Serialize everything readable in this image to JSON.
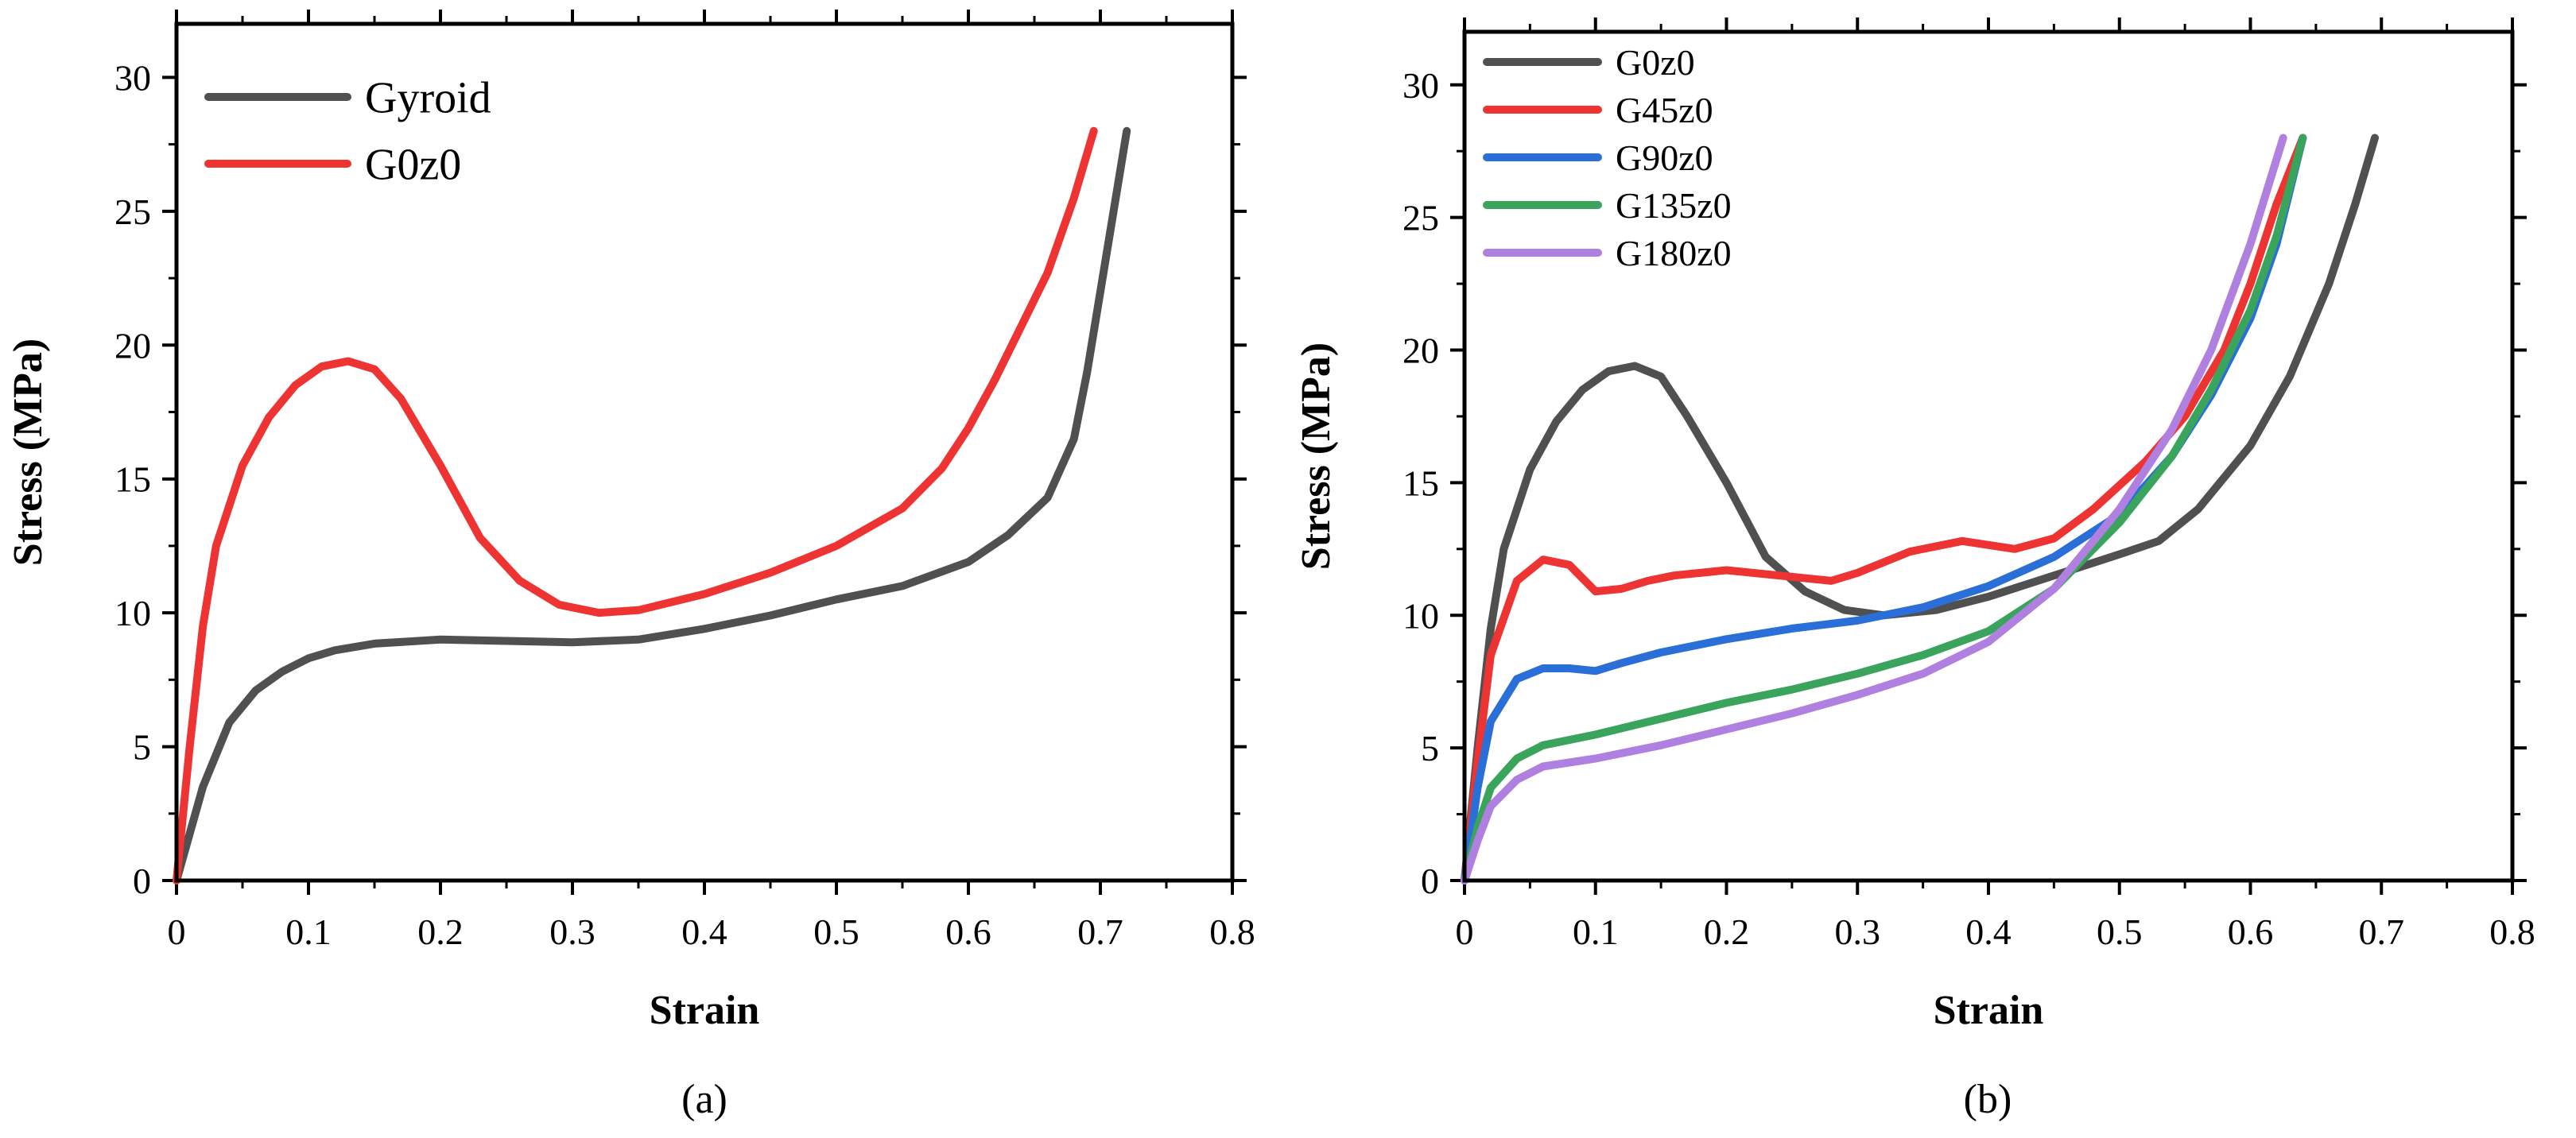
{
  "chart_data": [
    {
      "type": "line",
      "panel_label": "(a)",
      "xlabel": "Strain",
      "ylabel": "Stress (MPa)",
      "xlim": [
        0,
        0.8
      ],
      "ylim": [
        0,
        32
      ],
      "xticks": [
        "0",
        "0.1",
        "0.2",
        "0.3",
        "0.4",
        "0.5",
        "0.6",
        "0.7",
        "0.8"
      ],
      "yticks": [
        "0",
        "5",
        "10",
        "15",
        "20",
        "25",
        "30"
      ],
      "legend_position": "top-left",
      "series": [
        {
          "name": "Gyroid",
          "color": "#505050",
          "points": [
            [
              0,
              0
            ],
            [
              0.02,
              3.5
            ],
            [
              0.04,
              5.9
            ],
            [
              0.06,
              7.1
            ],
            [
              0.08,
              7.8
            ],
            [
              0.1,
              8.3
            ],
            [
              0.12,
              8.6
            ],
            [
              0.15,
              8.85
            ],
            [
              0.2,
              9.0
            ],
            [
              0.25,
              8.95
            ],
            [
              0.3,
              8.9
            ],
            [
              0.35,
              9.0
            ],
            [
              0.4,
              9.4
            ],
            [
              0.45,
              9.9
            ],
            [
              0.5,
              10.5
            ],
            [
              0.55,
              11.0
            ],
            [
              0.6,
              11.9
            ],
            [
              0.63,
              12.9
            ],
            [
              0.66,
              14.3
            ],
            [
              0.68,
              16.5
            ],
            [
              0.69,
              19.0
            ],
            [
              0.7,
              22.0
            ],
            [
              0.71,
              25.0
            ],
            [
              0.72,
              28.0
            ]
          ]
        },
        {
          "name": "G0z0",
          "color": "#ee3333",
          "points": [
            [
              0,
              0
            ],
            [
              0.01,
              5.0
            ],
            [
              0.02,
              9.5
            ],
            [
              0.03,
              12.5
            ],
            [
              0.05,
              15.5
            ],
            [
              0.07,
              17.3
            ],
            [
              0.09,
              18.5
            ],
            [
              0.11,
              19.2
            ],
            [
              0.13,
              19.4
            ],
            [
              0.15,
              19.1
            ],
            [
              0.17,
              18.0
            ],
            [
              0.2,
              15.5
            ],
            [
              0.23,
              12.8
            ],
            [
              0.26,
              11.2
            ],
            [
              0.29,
              10.3
            ],
            [
              0.32,
              10.0
            ],
            [
              0.35,
              10.1
            ],
            [
              0.4,
              10.7
            ],
            [
              0.45,
              11.5
            ],
            [
              0.5,
              12.5
            ],
            [
              0.55,
              13.9
            ],
            [
              0.58,
              15.4
            ],
            [
              0.6,
              16.9
            ],
            [
              0.62,
              18.7
            ],
            [
              0.64,
              20.7
            ],
            [
              0.66,
              22.7
            ],
            [
              0.68,
              25.5
            ],
            [
              0.695,
              28.0
            ]
          ]
        }
      ]
    },
    {
      "type": "line",
      "panel_label": "(b)",
      "xlabel": "Strain",
      "ylabel": "Stress (MPa)",
      "xlim": [
        0,
        0.8
      ],
      "ylim": [
        0,
        32
      ],
      "xticks": [
        "0",
        "0.1",
        "0.2",
        "0.3",
        "0.4",
        "0.5",
        "0.6",
        "0.7",
        "0.8"
      ],
      "yticks": [
        "0",
        "5",
        "10",
        "15",
        "20",
        "25",
        "30"
      ],
      "legend_position": "top-left",
      "series": [
        {
          "name": "G0z0",
          "color": "#505050",
          "points": [
            [
              0,
              0
            ],
            [
              0.01,
              5.0
            ],
            [
              0.02,
              9.5
            ],
            [
              0.03,
              12.5
            ],
            [
              0.05,
              15.5
            ],
            [
              0.07,
              17.3
            ],
            [
              0.09,
              18.5
            ],
            [
              0.11,
              19.2
            ],
            [
              0.13,
              19.4
            ],
            [
              0.15,
              19.0
            ],
            [
              0.17,
              17.5
            ],
            [
              0.2,
              15.0
            ],
            [
              0.23,
              12.2
            ],
            [
              0.26,
              10.9
            ],
            [
              0.29,
              10.2
            ],
            [
              0.32,
              10.0
            ],
            [
              0.36,
              10.2
            ],
            [
              0.4,
              10.7
            ],
            [
              0.45,
              11.5
            ],
            [
              0.5,
              12.3
            ],
            [
              0.53,
              12.8
            ],
            [
              0.56,
              14.0
            ],
            [
              0.6,
              16.4
            ],
            [
              0.63,
              19.0
            ],
            [
              0.66,
              22.5
            ],
            [
              0.68,
              25.5
            ],
            [
              0.695,
              28.0
            ]
          ]
        },
        {
          "name": "G45z0",
          "color": "#ee3333",
          "points": [
            [
              0,
              0
            ],
            [
              0.01,
              4.5
            ],
            [
              0.02,
              8.5
            ],
            [
              0.04,
              11.3
            ],
            [
              0.06,
              12.1
            ],
            [
              0.08,
              11.9
            ],
            [
              0.1,
              10.9
            ],
            [
              0.12,
              11.0
            ],
            [
              0.14,
              11.3
            ],
            [
              0.16,
              11.5
            ],
            [
              0.2,
              11.7
            ],
            [
              0.24,
              11.5
            ],
            [
              0.28,
              11.3
            ],
            [
              0.3,
              11.6
            ],
            [
              0.34,
              12.4
            ],
            [
              0.38,
              12.8
            ],
            [
              0.42,
              12.5
            ],
            [
              0.45,
              12.9
            ],
            [
              0.48,
              14.0
            ],
            [
              0.52,
              15.8
            ],
            [
              0.55,
              17.5
            ],
            [
              0.58,
              20.0
            ],
            [
              0.6,
              22.5
            ],
            [
              0.62,
              25.5
            ],
            [
              0.64,
              28.0
            ]
          ]
        },
        {
          "name": "G90z0",
          "color": "#2a6fd8",
          "points": [
            [
              0,
              0
            ],
            [
              0.01,
              3.5
            ],
            [
              0.02,
              6.0
            ],
            [
              0.04,
              7.6
            ],
            [
              0.06,
              8.0
            ],
            [
              0.08,
              8.0
            ],
            [
              0.1,
              7.9
            ],
            [
              0.12,
              8.2
            ],
            [
              0.15,
              8.6
            ],
            [
              0.2,
              9.1
            ],
            [
              0.25,
              9.5
            ],
            [
              0.3,
              9.8
            ],
            [
              0.35,
              10.3
            ],
            [
              0.4,
              11.1
            ],
            [
              0.45,
              12.2
            ],
            [
              0.5,
              13.8
            ],
            [
              0.54,
              16.0
            ],
            [
              0.57,
              18.3
            ],
            [
              0.6,
              21.2
            ],
            [
              0.62,
              24.0
            ],
            [
              0.64,
              28.0
            ]
          ]
        },
        {
          "name": "G135z0",
          "color": "#3aa45c",
          "points": [
            [
              0,
              0
            ],
            [
              0.01,
              2.0
            ],
            [
              0.02,
              3.5
            ],
            [
              0.04,
              4.6
            ],
            [
              0.06,
              5.1
            ],
            [
              0.1,
              5.5
            ],
            [
              0.15,
              6.1
            ],
            [
              0.2,
              6.7
            ],
            [
              0.25,
              7.2
            ],
            [
              0.3,
              7.8
            ],
            [
              0.35,
              8.5
            ],
            [
              0.4,
              9.4
            ],
            [
              0.45,
              11.0
            ],
            [
              0.5,
              13.5
            ],
            [
              0.54,
              16.0
            ],
            [
              0.57,
              18.5
            ],
            [
              0.6,
              21.5
            ],
            [
              0.62,
              24.3
            ],
            [
              0.64,
              28.0
            ]
          ]
        },
        {
          "name": "G180z0",
          "color": "#b080e0",
          "points": [
            [
              0,
              0
            ],
            [
              0.01,
              1.5
            ],
            [
              0.02,
              2.8
            ],
            [
              0.04,
              3.8
            ],
            [
              0.06,
              4.3
            ],
            [
              0.1,
              4.6
            ],
            [
              0.15,
              5.1
            ],
            [
              0.2,
              5.7
            ],
            [
              0.25,
              6.3
            ],
            [
              0.3,
              7.0
            ],
            [
              0.35,
              7.8
            ],
            [
              0.4,
              9.0
            ],
            [
              0.45,
              11.0
            ],
            [
              0.5,
              14.0
            ],
            [
              0.54,
              17.0
            ],
            [
              0.57,
              20.0
            ],
            [
              0.6,
              24.0
            ],
            [
              0.625,
              28.0
            ]
          ]
        }
      ]
    }
  ]
}
